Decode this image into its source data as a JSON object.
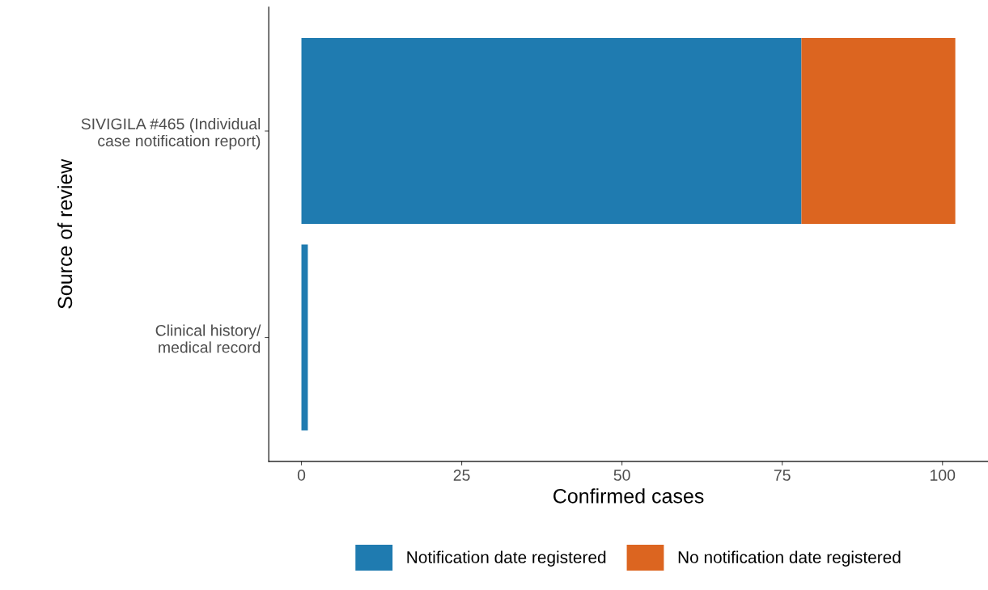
{
  "chart_data": {
    "type": "bar",
    "orientation": "horizontal",
    "stacked": true,
    "xlabel": "Confirmed cases",
    "ylabel": "Source of review",
    "categories": [
      "SIVIGILA #465 (Individual\ncase notification report)",
      "Clinical history/\nmedical record"
    ],
    "series": [
      {
        "name": "Notification date registered",
        "color": "#1f7bb0",
        "values": [
          78,
          1
        ]
      },
      {
        "name": "No notification date registered",
        "color": "#dc6520",
        "values": [
          24,
          0
        ]
      }
    ],
    "xlim": [
      -5.1,
      107.1
    ],
    "xticks": [
      0,
      25,
      50,
      75,
      100
    ],
    "grid": false,
    "legend": "bottom"
  }
}
